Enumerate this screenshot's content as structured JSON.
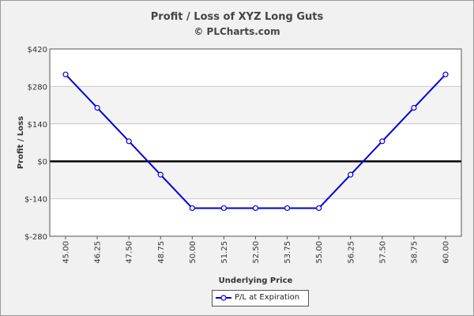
{
  "header": {
    "title": "Profit / Loss of XYZ Long Guts",
    "subtitle": "© PLCharts.com"
  },
  "chart_data": {
    "type": "line",
    "xlabel": "Underlying Price",
    "ylabel": "Profit / Loss",
    "x": [
      "45.00",
      "46.25",
      "47.50",
      "48.75",
      "50.00",
      "51.25",
      "52.50",
      "53.75",
      "55.00",
      "56.25",
      "57.50",
      "58.75",
      "60.00"
    ],
    "y_ticks": [
      "$420",
      "$280",
      "$140",
      "$0",
      "$-140",
      "$-280"
    ],
    "y_tick_values": [
      420,
      280,
      140,
      0,
      -140,
      -280
    ],
    "ylim": [
      -280,
      420
    ],
    "grid": "horizontal",
    "zero_line": true,
    "legend_position": "bottom",
    "series": [
      {
        "name": "P/L at Expiration",
        "color": "#0000dd",
        "values": [
          325,
          200,
          75,
          -50,
          -175,
          -175,
          -175,
          -175,
          -175,
          -50,
          75,
          200,
          325
        ]
      }
    ]
  }
}
